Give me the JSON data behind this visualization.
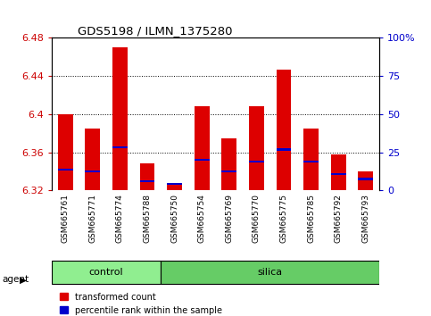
{
  "title": "GDS5198 / ILMN_1375280",
  "samples": [
    "GSM665761",
    "GSM665771",
    "GSM665774",
    "GSM665788",
    "GSM665750",
    "GSM665754",
    "GSM665769",
    "GSM665770",
    "GSM665775",
    "GSM665785",
    "GSM665792",
    "GSM665793"
  ],
  "groups": [
    "control",
    "control",
    "control",
    "control",
    "silica",
    "silica",
    "silica",
    "silica",
    "silica",
    "silica",
    "silica",
    "silica"
  ],
  "red_values": [
    6.4,
    6.385,
    6.47,
    6.348,
    6.327,
    6.408,
    6.375,
    6.408,
    6.447,
    6.385,
    6.358,
    6.34
  ],
  "blue_values": [
    6.342,
    6.34,
    6.365,
    6.33,
    6.327,
    6.352,
    6.34,
    6.35,
    6.363,
    6.35,
    6.337,
    6.332
  ],
  "ymin": 6.32,
  "ymax": 6.48,
  "yticks": [
    6.32,
    6.36,
    6.4,
    6.44,
    6.48
  ],
  "ytick_labels": [
    "6.32",
    "6.36",
    "6.4",
    "6.44",
    "6.48"
  ],
  "right_yticks": [
    0,
    25,
    50,
    75,
    100
  ],
  "right_ytick_labels": [
    "0",
    "25",
    "50",
    "75",
    "100%"
  ],
  "bar_color": "#dd0000",
  "blue_color": "#0000cc",
  "control_color": "#90ee90",
  "silica_color": "#66cc66",
  "tick_bg_color": "#d8d8d8",
  "bg_color": "#ffffff",
  "bar_width": 0.55,
  "n_control": 4,
  "n_silica": 8,
  "legend_red": "transformed count",
  "legend_blue": "percentile rank within the sample"
}
